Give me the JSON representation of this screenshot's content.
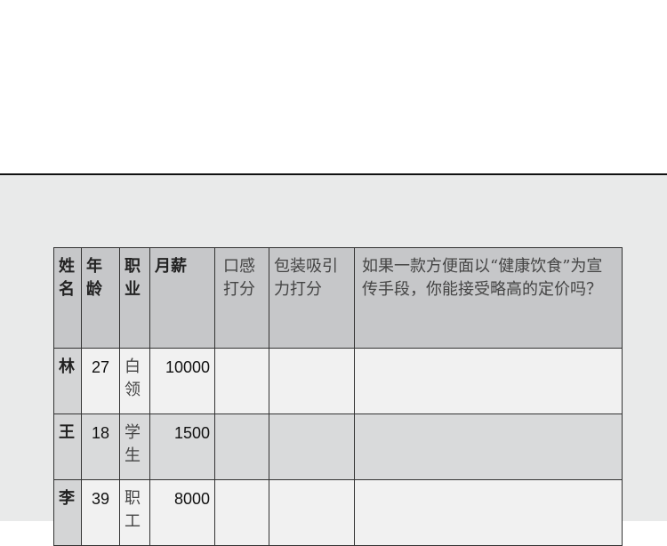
{
  "table": {
    "headers": [
      "姓名",
      "年龄",
      "职业",
      "月薪",
      "口感打分",
      "包装吸引力打分",
      "如果一款方便面以“健康饮食”为宣传手段，你能接受略高的定价吗？"
    ],
    "rows": [
      {
        "name": "林",
        "age": "27",
        "job": "白领",
        "salary": "10000"
      },
      {
        "name": "王",
        "age": "18",
        "job": "学生",
        "salary": "1500"
      },
      {
        "name": "李",
        "age": "39",
        "job": "职工",
        "salary": "8000"
      }
    ]
  }
}
